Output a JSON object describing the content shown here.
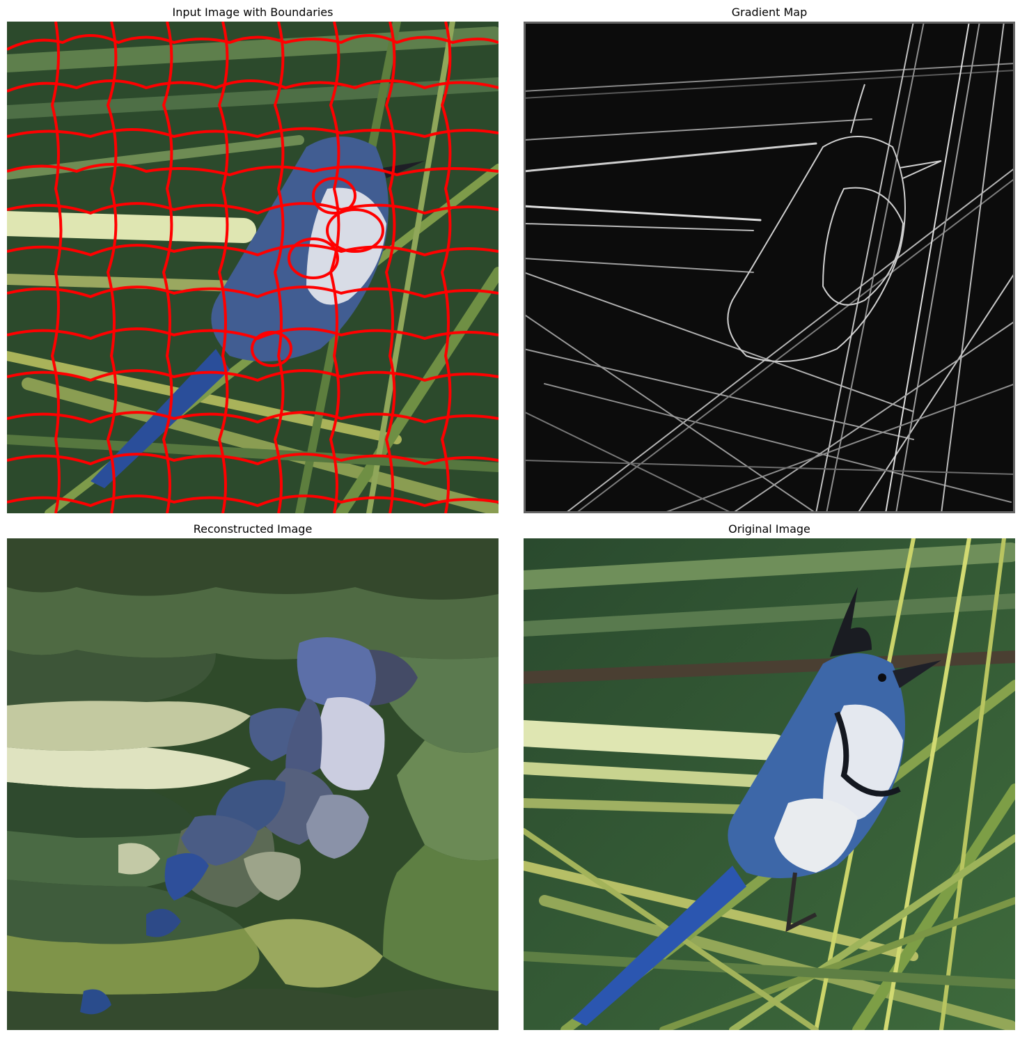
{
  "panels": [
    {
      "title": "Input Image with Boundaries"
    },
    {
      "title": "Gradient Map"
    },
    {
      "title": "Reconstructed Image"
    },
    {
      "title": "Original Image"
    }
  ],
  "colors": {
    "boundary": "#ff0000",
    "foliage_dark": "#223b22",
    "foliage_mid": "#3f6b3b",
    "frond_light": "#c9d47a",
    "bird_blue": "#3f5f9a",
    "bird_white": "#d9dde6",
    "gradient_bg": "#0c0c0c",
    "gradient_edge": "#e8e8e8"
  }
}
